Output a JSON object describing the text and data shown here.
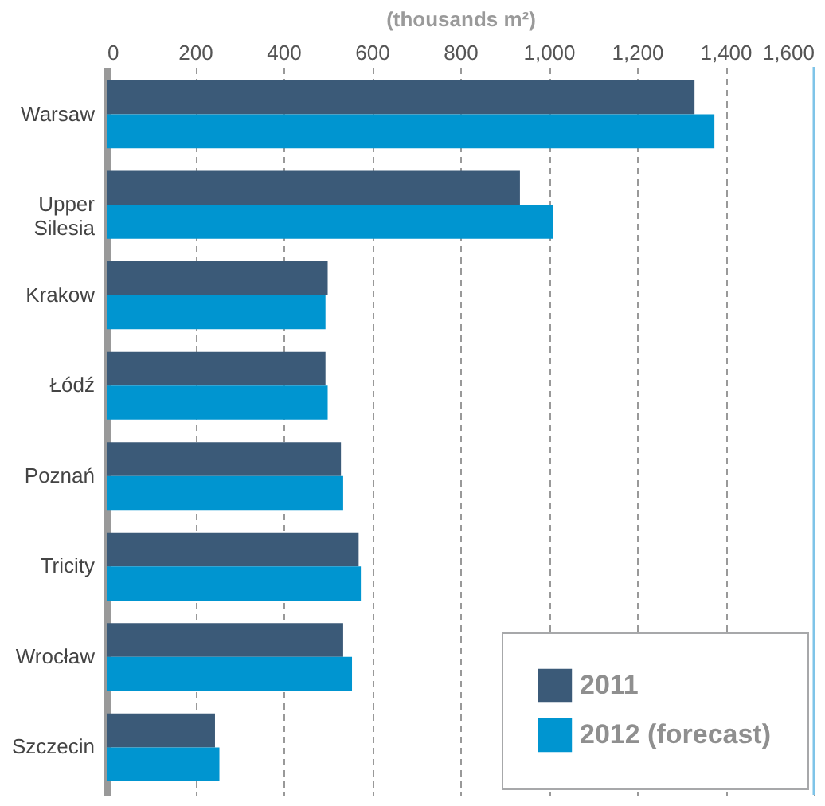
{
  "chart_data": {
    "type": "bar",
    "orientation": "horizontal",
    "xlabel": "(thousands m²)",
    "categories": [
      "Warsaw",
      "Upper Silesia",
      "Krakow",
      "Łódź",
      "Poznań",
      "Tricity",
      "Wrocław",
      "Szczecin"
    ],
    "series": [
      {
        "name": "2011",
        "color": "#3b5a78",
        "values": [
          1330,
          935,
          500,
          495,
          530,
          570,
          535,
          245
        ]
      },
      {
        "name": "2012 (forecast)",
        "color": "#0095d0",
        "values": [
          1375,
          1010,
          495,
          500,
          535,
          575,
          555,
          255
        ]
      }
    ],
    "xlim": [
      0,
      1600
    ],
    "xticks": [
      0,
      200,
      400,
      600,
      800,
      {
        "value": 1000,
        "label": "1,000"
      },
      {
        "value": 1200,
        "label": "1,200"
      },
      {
        "value": 1400,
        "label": "1,400"
      },
      {
        "value": 1600,
        "label": "1,600"
      }
    ],
    "ref_lines": [
      {
        "axis": "x",
        "value": 1600,
        "color": "#7fc4e8"
      }
    ],
    "grid": "x",
    "legend": "bottom right"
  }
}
